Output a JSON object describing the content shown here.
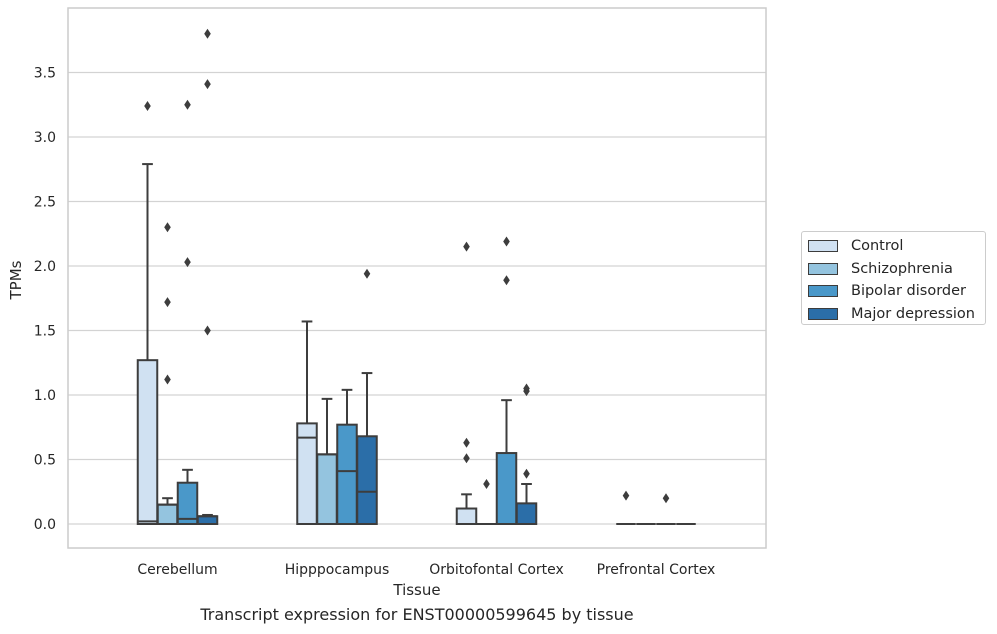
{
  "chart_data": {
    "type": "box",
    "caption": "Transcript expression for ENST00000599645 by tissue",
    "xlabel": "Tissue",
    "ylabel": "TPMs",
    "ylim": [
      -0.18,
      3.98
    ],
    "yticks": [
      0.0,
      0.5,
      1.0,
      1.5,
      2.0,
      2.5,
      3.0,
      3.5
    ],
    "ytick_labels": [
      "0.0",
      "0.5",
      "1.0",
      "1.5",
      "2.0",
      "2.5",
      "3.0",
      "3.5"
    ],
    "grid": "horizontal",
    "legend_position": "right",
    "categories": [
      "Cerebellum",
      "Hipppocampus",
      "Orbitofontal Cortex",
      "Prefrontal Cortex"
    ],
    "series": [
      {
        "name": "Control",
        "color": "#d0e1f2",
        "boxes": [
          {
            "q1": 0.0,
            "median": 0.02,
            "q3": 1.27,
            "whislo": 0.0,
            "whishi": 2.79,
            "fliers": [
              3.24
            ]
          },
          {
            "q1": 0.0,
            "median": 0.67,
            "q3": 0.78,
            "whislo": 0.0,
            "whishi": 1.57,
            "fliers": []
          },
          {
            "q1": 0.0,
            "median": 0.0,
            "q3": 0.12,
            "whislo": 0.0,
            "whishi": 0.23,
            "fliers": [
              0.51,
              0.63,
              2.15
            ]
          },
          {
            "q1": 0.0,
            "median": 0.0,
            "q3": 0.0,
            "whislo": 0.0,
            "whishi": 0.0,
            "fliers": [
              0.22
            ]
          }
        ]
      },
      {
        "name": "Schizophrenia",
        "color": "#94c4df",
        "boxes": [
          {
            "q1": 0.0,
            "median": 0.15,
            "q3": 0.15,
            "whislo": 0.0,
            "whishi": 0.2,
            "fliers": [
              1.12,
              1.72,
              2.3
            ]
          },
          {
            "q1": 0.0,
            "median": 0.54,
            "q3": 0.54,
            "whislo": 0.0,
            "whishi": 0.97,
            "fliers": []
          },
          {
            "q1": 0.0,
            "median": 0.0,
            "q3": 0.0,
            "whislo": 0.0,
            "whishi": 0.0,
            "fliers": [
              0.31
            ]
          },
          {
            "q1": 0.0,
            "median": 0.0,
            "q3": 0.0,
            "whislo": 0.0,
            "whishi": 0.0,
            "fliers": []
          }
        ]
      },
      {
        "name": "Bipolar disorder",
        "color": "#4a98c9",
        "boxes": [
          {
            "q1": 0.0,
            "median": 0.04,
            "q3": 0.32,
            "whislo": 0.0,
            "whishi": 0.42,
            "fliers": [
              2.03,
              3.25
            ]
          },
          {
            "q1": 0.0,
            "median": 0.41,
            "q3": 0.77,
            "whislo": 0.0,
            "whishi": 1.04,
            "fliers": []
          },
          {
            "q1": 0.0,
            "median": 0.0,
            "q3": 0.55,
            "whislo": 0.0,
            "whishi": 0.96,
            "fliers": [
              1.89,
              2.19
            ]
          },
          {
            "q1": 0.0,
            "median": 0.0,
            "q3": 0.0,
            "whislo": 0.0,
            "whishi": 0.0,
            "fliers": [
              0.2
            ]
          }
        ]
      },
      {
        "name": "Major depression",
        "color": "#2b6ea8",
        "boxes": [
          {
            "q1": 0.0,
            "median": 0.06,
            "q3": 0.06,
            "whislo": 0.0,
            "whishi": 0.07,
            "fliers": [
              1.5,
              3.41,
              3.8
            ]
          },
          {
            "q1": 0.0,
            "median": 0.25,
            "q3": 0.68,
            "whislo": 0.0,
            "whishi": 1.17,
            "fliers": [
              1.94
            ]
          },
          {
            "q1": 0.0,
            "median": 0.0,
            "q3": 0.16,
            "whislo": 0.0,
            "whishi": 0.31,
            "fliers": [
              0.39,
              1.03,
              1.05
            ]
          },
          {
            "q1": 0.0,
            "median": 0.0,
            "q3": 0.0,
            "whislo": 0.0,
            "whishi": 0.0,
            "fliers": []
          }
        ]
      }
    ]
  }
}
